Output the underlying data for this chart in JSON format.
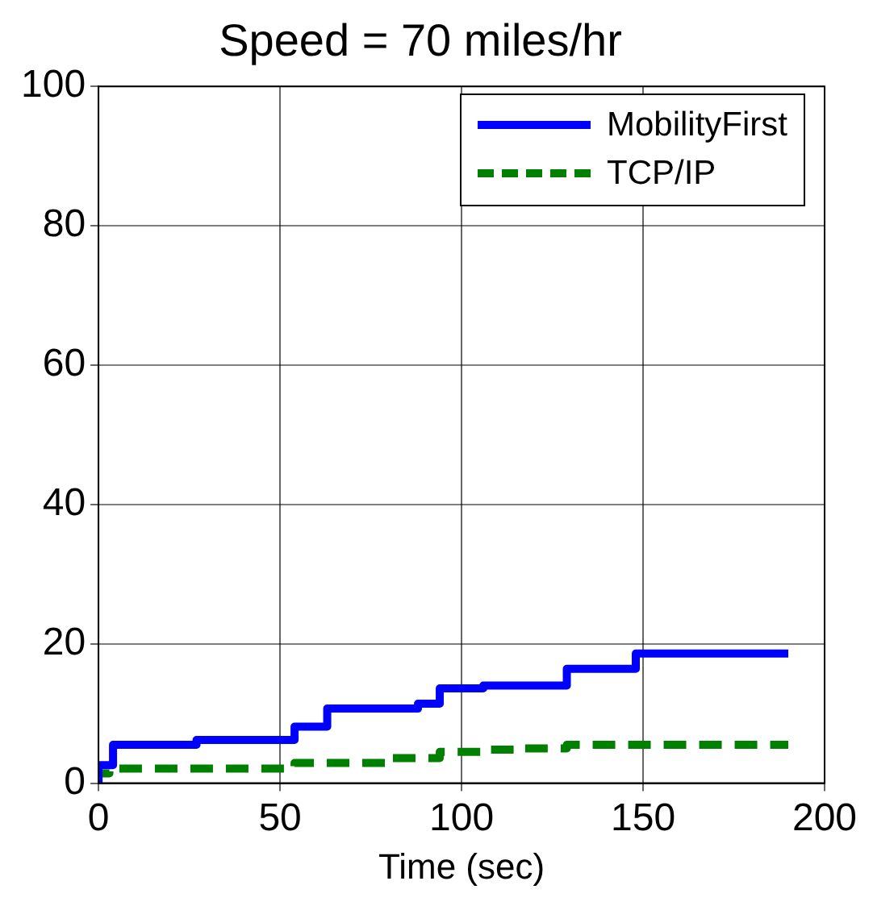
{
  "chart_data": {
    "type": "step",
    "title": "Speed = 70 miles/hr",
    "xlabel": "Time (sec)",
    "xlim": [
      0,
      200
    ],
    "xticks": [
      0,
      50,
      100,
      150,
      200
    ],
    "ylim": [
      0,
      100
    ],
    "yticks": [
      0,
      20,
      40,
      60,
      80,
      100
    ],
    "grid": true,
    "legend": "top right",
    "series": [
      {
        "name": "MobilityFirst",
        "color": "#0000ff",
        "line_style": "solid",
        "x": [
          0,
          4,
          27,
          54,
          63,
          88,
          94,
          106,
          129,
          148,
          171,
          190
        ],
        "values": [
          0,
          2.6,
          5.5,
          6.2,
          8.1,
          10.7,
          11.4,
          13.6,
          14.0,
          16.4,
          18.6,
          18.6
        ]
      },
      {
        "name": "TCP/IP",
        "color": "#008000",
        "line_style": "dashed",
        "x": [
          0,
          3,
          54,
          80,
          94,
          106,
          115,
          129,
          148,
          190
        ],
        "values": [
          0,
          1.4,
          2.1,
          2.9,
          3.6,
          4.5,
          4.8,
          5.0,
          5.5,
          5.5
        ]
      }
    ]
  }
}
